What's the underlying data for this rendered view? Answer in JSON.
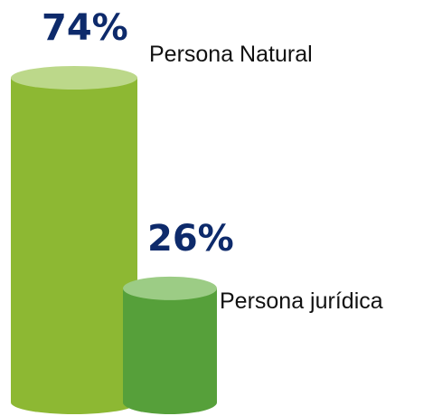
{
  "chart_data": {
    "type": "cylinder",
    "categories": [
      "Persona Natural",
      "Persona jurídica"
    ],
    "values": [
      74,
      26
    ],
    "value_labels": [
      "74%",
      "26%"
    ],
    "colors": [
      "#8db833",
      "#56a03a"
    ],
    "top_colors": [
      "#bcd88a",
      "#9ccc85"
    ]
  }
}
